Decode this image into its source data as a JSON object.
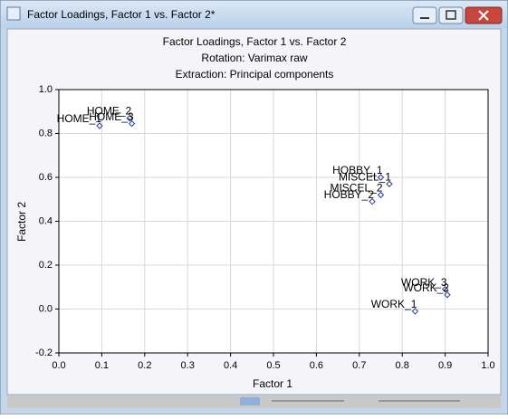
{
  "window": {
    "title": "Factor Loadings, Factor 1 vs. Factor 2*"
  },
  "chart_data": {
    "type": "scatter",
    "title": "Factor Loadings, Factor 1 vs. Factor 2",
    "subtitle": "Rotation: Varimax raw",
    "subtitle2": "Extraction: Principal components",
    "x_label": "Factor 1",
    "y_label": "Factor 2",
    "color": "#2a3c9a",
    "grid": true,
    "xlim": [
      0,
      1
    ],
    "ylim": [
      -0.2,
      1
    ],
    "xticks": [
      {
        "value": 0,
        "label": "0.0"
      },
      0.1,
      0.2,
      0.3,
      0.4,
      0.5,
      0.6,
      0.7,
      0.8,
      0.9,
      {
        "value": 1,
        "label": "1.0"
      }
    ],
    "yticks": [
      -0.2,
      {
        "value": 0,
        "label": "0.0"
      },
      0.2,
      0.4,
      0.6,
      0.8,
      {
        "value": 1,
        "label": "1.0"
      }
    ],
    "labels": [
      "HOME_1",
      "HOME_2",
      "HOME_3",
      "HOBBY_1",
      "MISCEL_1",
      "MISCEL_2",
      "HOBBY_2",
      "WORK_3",
      "WORK_2",
      "WORK_1"
    ],
    "x": [
      0.095,
      0.165,
      0.17,
      0.75,
      0.77,
      0.75,
      0.73,
      0.9,
      0.905,
      0.83
    ],
    "values": [
      0.835,
      0.87,
      0.845,
      0.6,
      0.57,
      0.52,
      0.49,
      0.09,
      0.065,
      -0.01
    ]
  }
}
